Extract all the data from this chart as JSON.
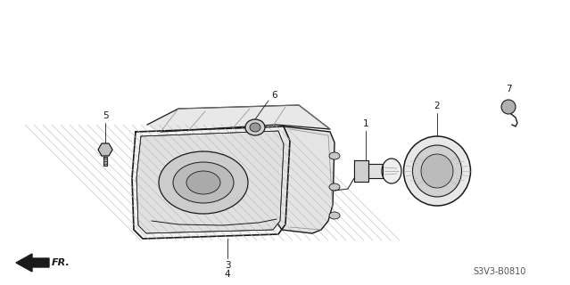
{
  "bg_color": "#ffffff",
  "line_color": "#1a1a1a",
  "gray_color": "#888888",
  "mid_gray": "#aaaaaa",
  "light_gray": "#d8d8d8",
  "ref_code": "S3V3-B0810",
  "figsize": [
    6.39,
    3.2
  ],
  "dpi": 100
}
